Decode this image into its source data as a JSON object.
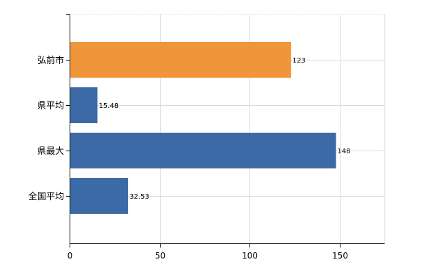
{
  "chart_data": {
    "type": "bar",
    "orientation": "horizontal",
    "categories": [
      "弘前市",
      "県平均",
      "県最大",
      "全国平均"
    ],
    "values": [
      123,
      15.48,
      148,
      32.53
    ],
    "value_labels": [
      "123",
      "15.48",
      "148",
      "32.53"
    ],
    "colors": [
      "#f0963a",
      "#3b6aa6",
      "#3b6aa6",
      "#3b6aa6"
    ],
    "xlim": [
      0,
      175
    ],
    "xticks": [
      0,
      50,
      100,
      150
    ],
    "xtick_labels": [
      "0",
      "50",
      "100",
      "150"
    ],
    "title": "",
    "xlabel": "",
    "ylabel": "",
    "grid": true,
    "legend": "none"
  }
}
